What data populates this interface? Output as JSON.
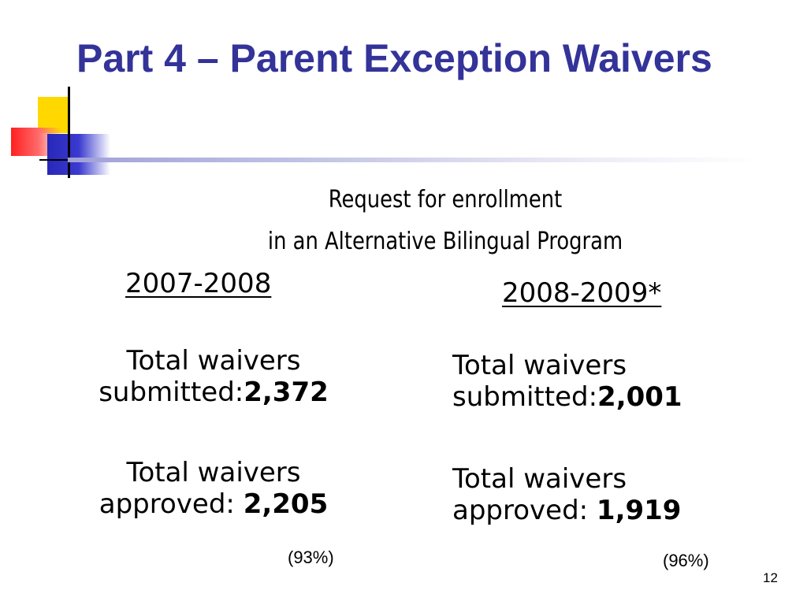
{
  "slide": {
    "title": "Part 4 – Parent Exception Waivers",
    "subtitle_line1": "Request for enrollment",
    "subtitle_line2": "in an Alternative Bilingual Program",
    "page_number": "12"
  },
  "columns": [
    {
      "year": "2007-2008",
      "submitted_label": "Total waivers submitted:",
      "submitted_value": "2,372",
      "approved_label": "Total waivers approved: ",
      "approved_value": "2,205",
      "approved_percent": "(93%)"
    },
    {
      "year": "2008-2009*",
      "submitted_label": "Total waivers submitted:",
      "submitted_value": "2,001",
      "approved_label": "Total waivers approved: ",
      "approved_value": "1,919",
      "approved_percent": "(96%)"
    }
  ],
  "colors": {
    "title": "#333399",
    "accent_yellow": "#ffd800",
    "accent_red": "#ff2020",
    "accent_blue": "#2727b8"
  }
}
